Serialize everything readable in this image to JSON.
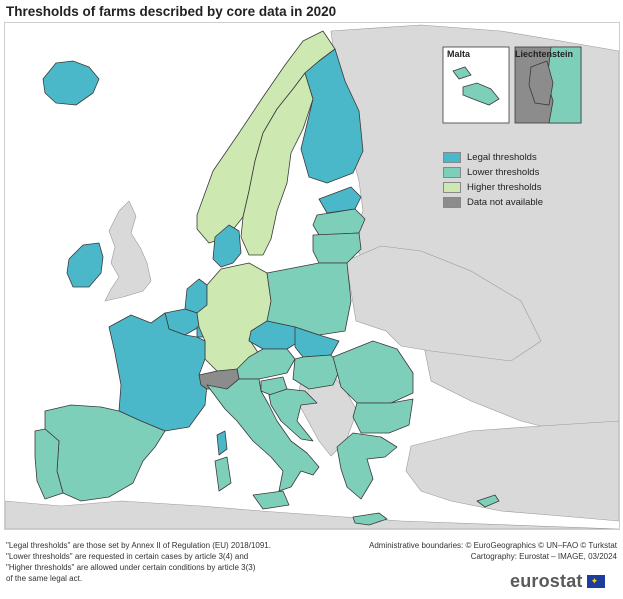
{
  "title": "Thresholds of farms described by core data in 2020",
  "colors": {
    "legal": "#4bb8ca",
    "lower": "#7ecfba",
    "higher": "#cde8b0",
    "na": "#8c8c8c",
    "non_eu": "#d9d9d9",
    "sea": "#ffffff",
    "border": "#3a3a3a"
  },
  "legend": [
    {
      "key": "legal",
      "label": "Legal thresholds",
      "color": "#4bb8ca"
    },
    {
      "key": "lower",
      "label": "Lower thresholds",
      "color": "#7ecfba"
    },
    {
      "key": "higher",
      "label": "Higher thresholds",
      "color": "#cde8b0"
    },
    {
      "key": "na",
      "label": "Data not available",
      "color": "#8c8c8c"
    }
  ],
  "insets": {
    "malta": "Malta",
    "liechtenstein": "Liechtenstein"
  },
  "countries": {
    "Iceland": "legal",
    "Ireland": "legal",
    "France": "legal",
    "Belgium": "legal",
    "Netherlands": "legal",
    "Luxembourg": "legal",
    "Denmark": "legal",
    "Finland": "legal",
    "Estonia": "legal",
    "Czechia": "legal",
    "Slovakia": "legal",
    "Norway": "higher",
    "Sweden": "higher",
    "Germany": "higher",
    "Latvia": "lower",
    "Lithuania": "lower",
    "Poland": "lower",
    "Spain": "lower",
    "Portugal": "lower",
    "Italy": "lower",
    "Austria": "lower",
    "Slovenia": "lower",
    "Croatia": "lower",
    "Hungary": "lower",
    "Romania": "lower",
    "Bulgaria": "lower",
    "Greece": "lower",
    "Cyprus": "lower",
    "Malta": "lower",
    "Switzerland": "na",
    "Liechtenstein": "na"
  },
  "footnote": [
    "\"Legal thresholds\" are those set by Annex II of Regulation (EU) 2018/1091.",
    "\"Lower thresholds\" are requested in certain cases by article 3(4) and",
    "\"Higher thresholds\" are allowed under certain conditions by article 3(3)",
    "of the same legal act."
  ],
  "credits": [
    "Administrative boundaries: © EuroGeographics © UN–FAO © Turkstat",
    "Cartography: Eurostat – IMAGE, 03/2024"
  ],
  "brand": "eurostat"
}
